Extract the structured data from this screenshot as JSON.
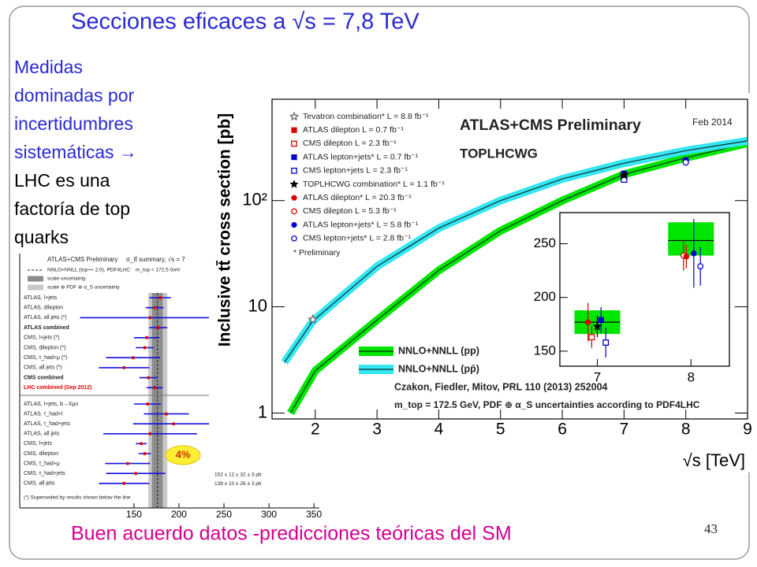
{
  "slide": {
    "title": "Secciones eficaces a √s = 7,8 TeV",
    "point": [
      "Medidas",
      "dominadas por",
      "incertidumbres",
      "sistemáticas →"
    ],
    "conclusion": [
      "LHC es una",
      "factoría de top",
      "quarks"
    ],
    "footer": "Buen acuerdo datos -predicciones teóricas del SM",
    "page_number": "43"
  },
  "chart_data": [
    {
      "type": "line",
      "title": "ATLAS+CMS Preliminary",
      "subtitle": "TOPLHCWG",
      "date": "Feb 2014",
      "xlabel": "√s [TeV]",
      "ylabel": "Inclusive tt̄ cross section [pb]",
      "log_y": true,
      "xlim": [
        1.3,
        9
      ],
      "ylim": [
        0.88,
        900
      ],
      "xticks": [
        2,
        3,
        4,
        5,
        6,
        7,
        8,
        9
      ],
      "yticks": [
        1,
        10,
        {
          "value": 100,
          "label": "10²"
        }
      ],
      "series": [
        {
          "name": "NNLO+NNLL (pp)",
          "color": "#00e600",
          "x": [
            1.6,
            2,
            3,
            4,
            5,
            6,
            7,
            8,
            9
          ],
          "values": [
            1.0,
            2.5,
            7.5,
            22,
            52,
            100,
            177,
            253,
            347
          ]
        },
        {
          "name": "NNLO+NNLL (pp̄)",
          "color": "#33e6f2",
          "x": [
            1.5,
            1.96,
            3,
            4,
            5,
            6,
            7,
            8,
            9
          ],
          "values": [
            3.0,
            7.35,
            24,
            55,
            100,
            160,
            225,
            295,
            365
          ]
        }
      ],
      "measurements": [
        {
          "name": "Tevatron combination* L = 8.8 fb⁻¹",
          "color": "#666666",
          "marker": "star-open",
          "x": 1.96,
          "value": 7.6
        },
        {
          "name": "ATLAS dilepton L = 0.7 fb⁻¹",
          "color": "#e00000",
          "marker": "square",
          "x": 7,
          "value": 173
        },
        {
          "name": "CMS dilepton L = 2.3 fb⁻¹",
          "color": "#e00000",
          "marker": "square-open",
          "x": 7,
          "value": 162
        },
        {
          "name": "ATLAS lepton+jets* L = 0.7 fb⁻¹",
          "color": "#0000d0",
          "marker": "square",
          "x": 7,
          "value": 179
        },
        {
          "name": "CMS lepton+jets L = 2.3 fb⁻¹",
          "color": "#0000d0",
          "marker": "square-open",
          "x": 7,
          "value": 158
        },
        {
          "name": "TOPLHCWG combination* L = 1.1 fb⁻¹",
          "color": "#000000",
          "marker": "star",
          "x": 7,
          "value": 173
        },
        {
          "name": "ATLAS dilepton* L = 20.3 fb⁻¹",
          "color": "#e00000",
          "marker": "circle",
          "x": 8,
          "value": 238
        },
        {
          "name": "CMS dilepton L = 5.3 fb⁻¹",
          "color": "#e00000",
          "marker": "circle-open",
          "x": 8,
          "value": 239
        },
        {
          "name": "ATLAS lepton+jets* L = 5.8 fb⁻¹",
          "color": "#0000d0",
          "marker": "circle",
          "x": 8,
          "value": 241
        },
        {
          "name": "CMS lepton+jets* L = 2.8 fb⁻¹",
          "color": "#0000d0",
          "marker": "circle-open",
          "x": 8,
          "value": 229
        }
      ],
      "footnote": "* Preliminary",
      "citation": "Czakon, Fiedler, Mitov, PRL 110 (2013) 252004",
      "note": "m_top = 172.5 GeV, PDF ⊕ α_S uncertainties according to PDF4LHC"
    },
    {
      "type": "scatter",
      "xlim": [
        6.6,
        8.41
      ],
      "ylim": [
        136,
        279
      ],
      "xticks": [
        7,
        8
      ],
      "yticks": [
        150,
        200,
        250
      ],
      "bands": [
        {
          "x": 7,
          "low": 166,
          "high": 188,
          "center": 177
        },
        {
          "x": 8,
          "low": 239,
          "high": 270,
          "center": 253
        }
      ],
      "points": [
        {
          "x": 6.9,
          "value": 177,
          "error": 18,
          "color": "#e00000",
          "marker": "circle"
        },
        {
          "x": 6.94,
          "value": 163,
          "error": 10,
          "color": "#e00000",
          "marker": "square-open"
        },
        {
          "x": 7.0,
          "value": 173,
          "error": 10,
          "color": "#000000",
          "marker": "star"
        },
        {
          "x": 7.04,
          "value": 179,
          "error": 12,
          "color": "#0000d0",
          "marker": "square"
        },
        {
          "x": 7.09,
          "value": 158,
          "error": 14,
          "color": "#0000d0",
          "marker": "square-open"
        },
        {
          "x": 7.92,
          "value": 239,
          "error": 14,
          "color": "#e00000",
          "marker": "circle-open"
        },
        {
          "x": 7.95,
          "value": 238,
          "error": 11,
          "color": "#e00000",
          "marker": "circle"
        },
        {
          "x": 8.03,
          "value": 241,
          "error": 32,
          "color": "#0000d0",
          "marker": "circle"
        },
        {
          "x": 8.1,
          "value": 229,
          "error": 18,
          "color": "#0000d0",
          "marker": "circle-open"
        }
      ]
    },
    {
      "type": "errorbar",
      "title": "ATLAS+CMS Preliminary",
      "subtitle": "σ_tt̄ summary, √s = 7",
      "legend": [
        "NNLO+NNLL (top++ 2.0), PDF4LHC",
        "scale uncertainty",
        "scale ⊕ PDF ⊕ α_S uncertainty"
      ],
      "mass_note": "m_top = 172.5 GeV",
      "xlim": [
        23,
        356
      ],
      "xticks": [
        150,
        200,
        250,
        300,
        350
      ],
      "theory": {
        "center": 176,
        "scale": [
          170,
          182
        ],
        "total": [
          166,
          187
        ]
      },
      "groups": [
        {
          "rows": [
            {
              "label": "ATLAS, l+jets",
              "value": 179,
              "error": 12
            },
            {
              "label": "ATLAS, dilepton",
              "value": 173,
              "error": 10
            },
            {
              "label": "ATLAS, all jets (*)",
              "value": 168,
              "error": 78
            },
            {
              "label": "ATLAS combined",
              "value": 177,
              "error": 10,
              "emphasis": true
            },
            {
              "label": "CMS, l+jets (*)",
              "value": 164,
              "error": 14
            },
            {
              "label": "CMS, dilepton (*)",
              "value": 162,
              "error": 10
            },
            {
              "label": "CMS, τ_had+μ (*)",
              "value": 149,
              "error": 30
            },
            {
              "label": "CMS, all jets (*)",
              "value": 139,
              "error": 28
            },
            {
              "label": "CMS combined",
              "value": 166,
              "error": 10,
              "emphasis": true
            },
            {
              "label": "LHC combined (Sep 2012)",
              "value": 173,
              "error": 9,
              "emphasis": true,
              "color": "#e00000"
            }
          ]
        },
        {
          "rows": [
            {
              "label": "ATLAS, l+jets, b→Xμν",
              "value": 165,
              "error": 15
            },
            {
              "label": "ATLAS, τ_had+l",
              "value": 186,
              "error": 25
            },
            {
              "label": "ATLAS, τ_had+jets",
              "value": 194,
              "error": 45
            },
            {
              "label": "ATLAS, all jets",
              "value": 168,
              "error": 52
            },
            {
              "label": "CMS, l+jets",
              "value": 158,
              "error": 6
            },
            {
              "label": "CMS, dilepton",
              "value": 162,
              "error": 7
            },
            {
              "label": "CMS, τ_had+μ",
              "value": 143,
              "error": 25
            },
            {
              "label": "CMS, τ_had+jets",
              "value": 152,
              "error": 33
            },
            {
              "label": "CMS, all jets",
              "value": 139,
              "error": 28
            }
          ]
        }
      ],
      "results": [
        "152 ± 12 ± 32 ± 3 pb",
        "139 ± 10 ± 26 ± 3 pb"
      ],
      "footnote": "(*) Superseded by results shown below the line",
      "badge": "4%"
    }
  ]
}
